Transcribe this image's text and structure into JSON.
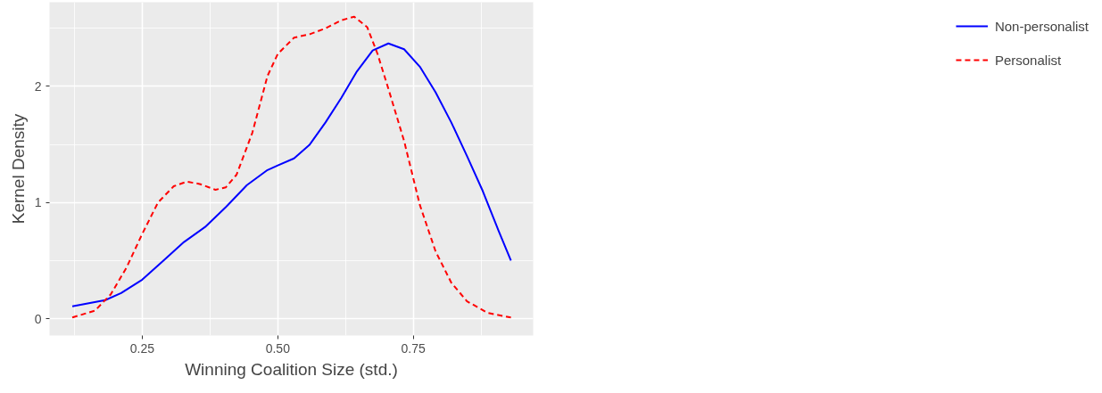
{
  "chart_data": {
    "type": "line",
    "xlabel": "Winning Coalition Size (std.)",
    "ylabel": "Kernel Density",
    "xlim": [
      0.079,
      0.971
    ],
    "ylim": [
      -0.145,
      2.725
    ],
    "xticks": [
      {
        "value": 0.25,
        "label": "0.25"
      },
      {
        "value": 0.5,
        "label": "0.50"
      },
      {
        "value": 0.75,
        "label": "0.75"
      }
    ],
    "yticks": [
      0,
      1,
      2
    ],
    "grid": true,
    "legend": "right",
    "series": [
      {
        "name": "Non-personalist",
        "color": "#0000ff",
        "line_style": "solid",
        "x": [
          0.121,
          0.182,
          0.211,
          0.25,
          0.289,
          0.327,
          0.366,
          0.404,
          0.443,
          0.481,
          0.5,
          0.53,
          0.559,
          0.588,
          0.617,
          0.646,
          0.675,
          0.704,
          0.733,
          0.762,
          0.791,
          0.82,
          0.849,
          0.878,
          0.907,
          0.93
        ],
        "values": [
          0.107,
          0.16,
          0.22,
          0.336,
          0.5,
          0.66,
          0.79,
          0.96,
          1.15,
          1.28,
          1.32,
          1.38,
          1.5,
          1.69,
          1.9,
          2.13,
          2.31,
          2.37,
          2.32,
          2.17,
          1.95,
          1.69,
          1.4,
          1.1,
          0.76,
          0.5
        ]
      },
      {
        "name": "Personalist",
        "color": "#ff0000",
        "line_style": "dashed",
        "x": [
          0.121,
          0.163,
          0.192,
          0.221,
          0.25,
          0.279,
          0.308,
          0.332,
          0.356,
          0.385,
          0.404,
          0.424,
          0.453,
          0.481,
          0.5,
          0.53,
          0.559,
          0.588,
          0.617,
          0.641,
          0.665,
          0.684,
          0.704,
          0.733,
          0.762,
          0.791,
          0.82,
          0.849,
          0.887,
          0.93
        ],
        "values": [
          0.01,
          0.07,
          0.21,
          0.44,
          0.73,
          1.0,
          1.14,
          1.18,
          1.16,
          1.11,
          1.13,
          1.24,
          1.6,
          2.09,
          2.28,
          2.42,
          2.45,
          2.5,
          2.57,
          2.6,
          2.51,
          2.28,
          1.98,
          1.53,
          0.98,
          0.58,
          0.31,
          0.15,
          0.05,
          0.01
        ]
      }
    ]
  }
}
